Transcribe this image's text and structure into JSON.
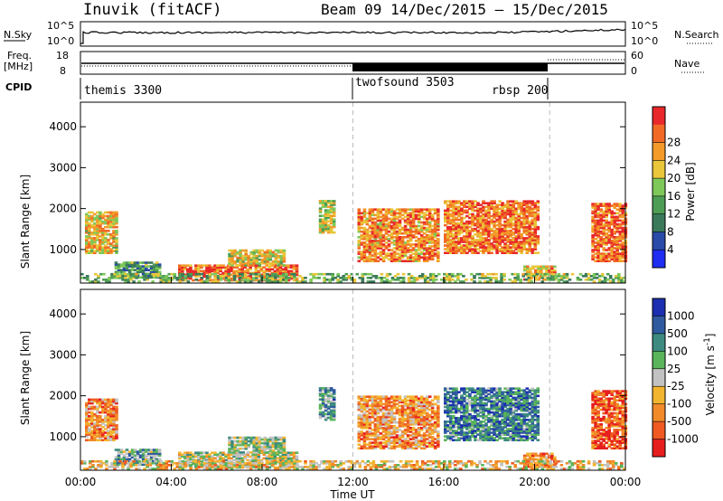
{
  "header": {
    "station": "Inuvik (fitACF)",
    "beam": "Beam 09  14/Dec/2015 – 15/Dec/2015"
  },
  "side_labels": {
    "nsky": "N.Sky",
    "nsky_ticks": [
      "10^5",
      "10^0"
    ],
    "nsearch": "N.Search",
    "nsearch_ticks": [
      "10^5",
      "10^0"
    ],
    "freq": "Freq.",
    "freq_unit": "[MHz]",
    "freq_ticks": [
      "18",
      "8"
    ],
    "nave": "Nave",
    "nave_ticks": [
      "60",
      "0"
    ],
    "cpid": "CPID"
  },
  "cpid_segments": [
    {
      "label": "themis 3300",
      "start": "00:00",
      "end": "12:00"
    },
    {
      "label": "twofsound 3503",
      "start": "12:00",
      "end": "20:40"
    },
    {
      "label": "rbsp 200",
      "start": "20:40",
      "end": "00:00"
    }
  ],
  "x_axis": {
    "label": "Time UT",
    "ticks": [
      "00:00",
      "04:00",
      "08:00",
      "12:00",
      "16:00",
      "20:00",
      "00:00"
    ],
    "tick_hours": [
      0,
      4,
      8,
      12,
      16,
      20,
      24
    ]
  },
  "chart_data": [
    {
      "type": "heatmap",
      "panel": "power",
      "ylabel": "Slant Range [km]",
      "yticks": [
        1000,
        2000,
        3000,
        4000
      ],
      "ylim": [
        180,
        4600
      ],
      "xlim_hours": [
        0,
        24
      ],
      "colorbar": {
        "label": "Power [dB]",
        "ticks": [
          "4",
          "8",
          "12",
          "16",
          "20",
          "24",
          "28"
        ],
        "colors": [
          "#1f2ef0",
          "#2a4aa8",
          "#3a7a5a",
          "#4e9d55",
          "#7ec85a",
          "#e9c63a",
          "#f39a2a",
          "#f06a25",
          "#e8282a"
        ]
      },
      "blobs": [
        {
          "t": [
            0.2,
            1.6
          ],
          "r": [
            900,
            1900
          ],
          "level": 0.65
        },
        {
          "t": [
            1.5,
            3.5
          ],
          "r": [
            300,
            700
          ],
          "level": 0.35
        },
        {
          "t": [
            4.3,
            9.5
          ],
          "r": [
            230,
            600
          ],
          "level": 0.85
        },
        {
          "t": [
            6.5,
            9.0
          ],
          "r": [
            600,
            1000
          ],
          "level": 0.6
        },
        {
          "t": [
            10.5,
            11.2
          ],
          "r": [
            1400,
            2200
          ],
          "level": 0.55
        },
        {
          "t": [
            12.2,
            15.7
          ],
          "r": [
            700,
            2000
          ],
          "level": 0.75
        },
        {
          "t": [
            16.0,
            20.2
          ],
          "r": [
            900,
            2200
          ],
          "level": 0.8
        },
        {
          "t": [
            19.5,
            20.9
          ],
          "r": [
            250,
            600
          ],
          "level": 0.7
        },
        {
          "t": [
            22.5,
            24.0
          ],
          "r": [
            700,
            2100
          ],
          "level": 0.85
        },
        {
          "t": [
            0.0,
            24.0
          ],
          "r": [
            200,
            400
          ],
          "level": 0.45
        }
      ]
    },
    {
      "type": "heatmap",
      "panel": "velocity",
      "ylabel": "Slant Range [km]",
      "yticks": [
        1000,
        2000,
        3000,
        4000
      ],
      "ylim": [
        180,
        4600
      ],
      "xlim_hours": [
        0,
        24
      ],
      "colorbar": {
        "label": "Velocity [m s^-1]",
        "ticks": [
          "1000",
          "500",
          "100",
          "25",
          "-25",
          "-100",
          "-500",
          "-1000"
        ],
        "colors": [
          "#1b2fb0",
          "#2f5aa0",
          "#3c8a80",
          "#5ab45a",
          "#c2c2c2",
          "#f2b530",
          "#f08a2a",
          "#ee5a22",
          "#e61e1e"
        ]
      },
      "blobs": [
        {
          "t": [
            0.2,
            1.6
          ],
          "r": [
            900,
            1900
          ],
          "level": 0.72
        },
        {
          "t": [
            1.5,
            3.5
          ],
          "r": [
            300,
            700
          ],
          "level": 0.35
        },
        {
          "t": [
            4.3,
            9.5
          ],
          "r": [
            230,
            600
          ],
          "level": 0.5
        },
        {
          "t": [
            6.5,
            9.0
          ],
          "r": [
            600,
            1000
          ],
          "level": 0.45
        },
        {
          "t": [
            10.5,
            11.2
          ],
          "r": [
            1400,
            2200
          ],
          "level": 0.3
        },
        {
          "t": [
            12.2,
            15.7
          ],
          "r": [
            700,
            2000
          ],
          "level": 0.7
        },
        {
          "t": [
            16.0,
            20.2
          ],
          "r": [
            900,
            2200
          ],
          "level": 0.25
        },
        {
          "t": [
            19.5,
            20.9
          ],
          "r": [
            250,
            600
          ],
          "level": 0.75
        },
        {
          "t": [
            22.5,
            24.0
          ],
          "r": [
            700,
            2100
          ],
          "level": 0.85
        },
        {
          "t": [
            0.0,
            24.0
          ],
          "r": [
            200,
            400
          ],
          "level": 0.6
        }
      ]
    }
  ]
}
